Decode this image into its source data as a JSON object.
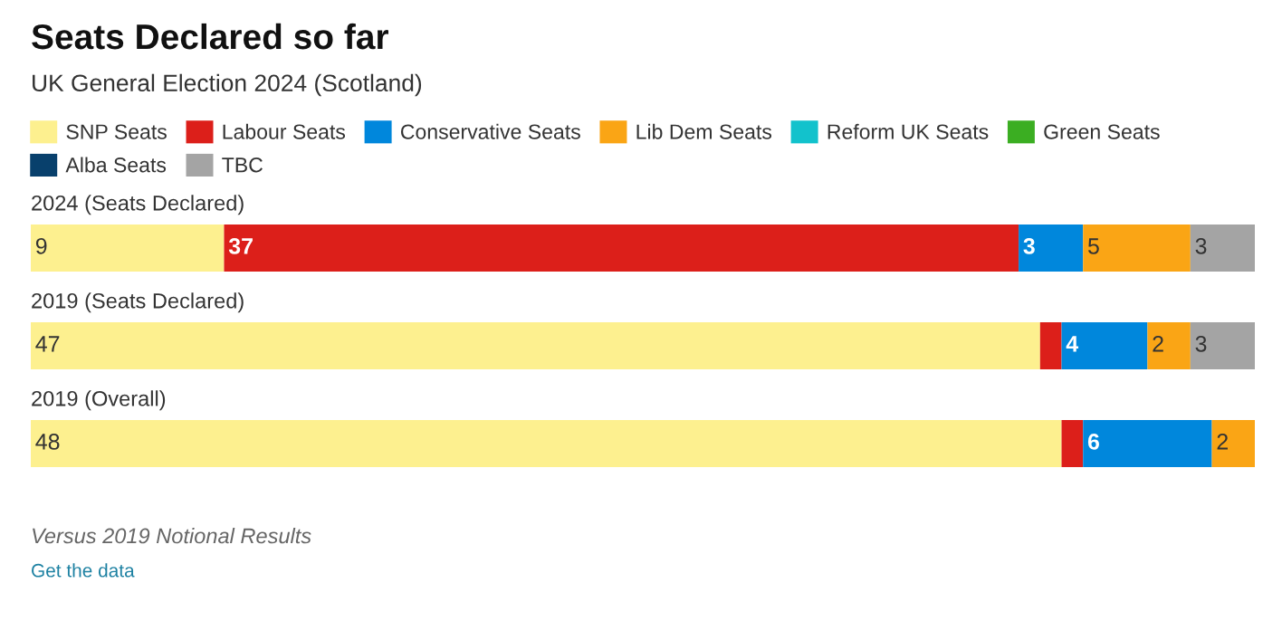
{
  "chart_data": {
    "type": "bar",
    "orientation": "horizontal",
    "stacked": true,
    "title": "Seats Declared so far",
    "subtitle": "UK General Election 2024 (Scotland)",
    "categories": [
      "2024 (Seats Declared)",
      "2019 (Seats Declared)",
      "2019 (Overall)"
    ],
    "series": [
      {
        "name": "SNP Seats",
        "color": "#fdf08f",
        "values": [
          9,
          47,
          48
        ],
        "value_labels": [
          "9",
          "47",
          "48"
        ]
      },
      {
        "name": "Labour Seats",
        "color": "#dc1f1a",
        "values": [
          37,
          1,
          1
        ],
        "value_labels": [
          "37",
          null,
          null
        ]
      },
      {
        "name": "Conservative Seats",
        "color": "#0087dc",
        "values": [
          3,
          4,
          6
        ],
        "value_labels": [
          "3",
          "4",
          "6"
        ]
      },
      {
        "name": "Lib Dem Seats",
        "color": "#faa515",
        "values": [
          5,
          2,
          2
        ],
        "value_labels": [
          "5",
          "2",
          "2"
        ]
      },
      {
        "name": "Reform UK Seats",
        "color": "#12c2cc",
        "values": [
          0,
          0,
          0
        ],
        "value_labels": [
          null,
          null,
          null
        ]
      },
      {
        "name": "Green Seats",
        "color": "#3bae22",
        "values": [
          0,
          0,
          0
        ],
        "value_labels": [
          null,
          null,
          null
        ]
      },
      {
        "name": "Alba Seats",
        "color": "#08406c",
        "values": [
          0,
          0,
          0
        ],
        "value_labels": [
          null,
          null,
          null
        ]
      },
      {
        "name": "TBC",
        "color": "#a4a4a4",
        "values": [
          3,
          3,
          0
        ],
        "value_labels": [
          "3",
          "3",
          null
        ]
      }
    ],
    "legend": "top left",
    "annotations": [
      "Versus 2019 Notional Results",
      "Get the data"
    ]
  }
}
